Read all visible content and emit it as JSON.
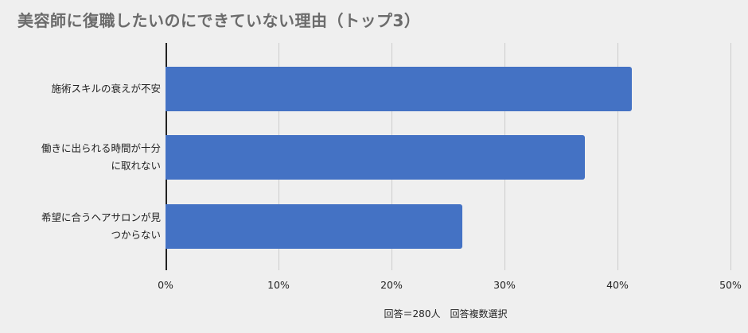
{
  "chart_data": {
    "type": "bar",
    "orientation": "horizontal",
    "title": "美容師に復職したいのにできていない理由（トップ3）",
    "categories": [
      "施術スキルの衰えが不安",
      "働きに出られる時間が十分に取れない",
      "希望に合うヘアサロンが見つからない"
    ],
    "category_lines": [
      [
        "施術スキルの衰えが不安"
      ],
      [
        "働きに出られる時間が十分",
        "に取れない"
      ],
      [
        "希望に合うヘアサロンが見",
        "つからない"
      ]
    ],
    "values": [
      41.3,
      37.1,
      26.3
    ],
    "unit": "%",
    "xlim": [
      0,
      50
    ],
    "xticks": [
      "0%",
      "10%",
      "20%",
      "30%",
      "40%",
      "50%"
    ],
    "xlabel": "回答＝280人　回答複数選択",
    "ylabel": "",
    "grid": true,
    "legend": null,
    "bar_color": "#4472c4"
  }
}
